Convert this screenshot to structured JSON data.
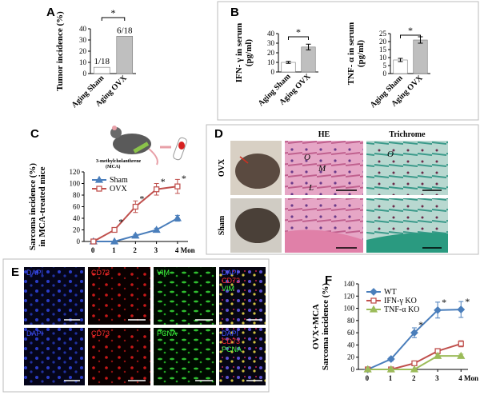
{
  "panel_labels": [
    "A",
    "B",
    "C",
    "D",
    "E",
    "F"
  ],
  "chart_data": [
    {
      "type": "bar",
      "ylabel": [
        "Tumor incidence (%)"
      ],
      "categories": [
        "Aging Sham",
        "Aging OVX"
      ],
      "values": [
        5.6,
        33.3
      ],
      "value_labels": [
        "1/18",
        "6/18"
      ],
      "colors": [
        "#ffffff",
        "#bfbfbf"
      ],
      "ylim": [
        0,
        40
      ],
      "yticks": [
        0,
        10,
        20,
        30,
        40
      ],
      "significance": "*"
    },
    {
      "type": "bar",
      "ylabel": [
        "IFN- γ in serum",
        "(pg/ml)"
      ],
      "categories": [
        "Aging Sham",
        "Aging OVX"
      ],
      "values": [
        10,
        26
      ],
      "errors": [
        1,
        3
      ],
      "colors": [
        "#ffffff",
        "#bfbfbf"
      ],
      "ylim": [
        0,
        40
      ],
      "yticks": [
        0,
        10,
        20,
        30,
        40
      ],
      "significance": "*"
    },
    {
      "type": "bar",
      "ylabel": [
        "TNF- α in serum",
        "(pg/ml)"
      ],
      "categories": [
        "Aging Sham",
        "Aging OVX"
      ],
      "values": [
        8.5,
        21
      ],
      "errors": [
        1,
        2
      ],
      "colors": [
        "#ffffff",
        "#bfbfbf"
      ],
      "ylim": [
        0,
        25
      ],
      "yticks": [
        0,
        5,
        10,
        15,
        20,
        25
      ],
      "significance": "*"
    },
    {
      "type": "line",
      "ylabel": [
        "Sarcoma incidence (%)",
        "in MCA-treated mice"
      ],
      "x": [
        0,
        1,
        2,
        3,
        4
      ],
      "xlim": [
        -0.45,
        4.5
      ],
      "xticks": [
        0,
        1,
        2,
        3,
        {
          "value": 4,
          "label": "4 Mon"
        }
      ],
      "ylim": [
        0,
        120
      ],
      "yticks": [
        0,
        20,
        40,
        60,
        80,
        100,
        120
      ],
      "series": [
        {
          "name": "Sham",
          "color": "#4a7ebb",
          "marker": "triangle",
          "values": [
            0,
            0,
            10,
            20,
            40
          ],
          "errors": [
            0,
            0,
            2,
            3,
            5
          ],
          "annotations": [
            null,
            null,
            null,
            null,
            null
          ]
        },
        {
          "name": "OVX",
          "color": "#c0504d",
          "marker": "square",
          "values": [
            0,
            20,
            60,
            90,
            95
          ],
          "errors": [
            0,
            4,
            10,
            10,
            12
          ],
          "annotations": [
            null,
            "*",
            "*",
            "*",
            "*"
          ]
        }
      ]
    },
    {
      "type": "line",
      "ylabel": [
        "OVX+MCA",
        "Sarcoma incidence (%)"
      ],
      "x": [
        0,
        1,
        2,
        3,
        4
      ],
      "xlim": [
        -0.4,
        4.3
      ],
      "xticks": [
        0,
        1,
        2,
        3,
        {
          "value": 4,
          "label": "4 Mon"
        }
      ],
      "ylim": [
        0,
        140
      ],
      "yticks": [
        0,
        20,
        40,
        60,
        80,
        100,
        120,
        140
      ],
      "series": [
        {
          "name": "WT",
          "color": "#4a7ebb",
          "marker": "diamond",
          "values": [
            0,
            17,
            60,
            97,
            98
          ],
          "errors": [
            0,
            3,
            8,
            13,
            13
          ],
          "annotations": [
            null,
            null,
            "*",
            "*",
            "*"
          ]
        },
        {
          "name": "IFN-γ KO",
          "color": "#c0504d",
          "marker": "square",
          "values": [
            0,
            0,
            10,
            30,
            42
          ],
          "errors": [
            0,
            0,
            0,
            4,
            5
          ],
          "annotations": [
            null,
            null,
            null,
            null,
            null
          ]
        },
        {
          "name": "TNF-α KO",
          "color": "#9bbb59",
          "marker": "triangle",
          "values": [
            0,
            0,
            0,
            22,
            22
          ],
          "errors": [
            0,
            0,
            0,
            3,
            3
          ],
          "annotations": [
            null,
            null,
            null,
            null,
            null
          ]
        }
      ]
    }
  ],
  "illustration": {
    "label": [
      "3-methylcholanthrene",
      "(MCA)"
    ]
  },
  "panel_d": {
    "columns": [
      "HE",
      "Trichrome"
    ],
    "rows": [
      "OVX",
      "Sham"
    ],
    "annotations": [
      "O",
      "M",
      "L",
      "O"
    ]
  },
  "panel_e": {
    "rows": [
      {
        "channels": [
          "DAPI",
          "CD73",
          "VIM"
        ],
        "merge": [
          "DAPI",
          "CD73",
          "VIM"
        ]
      },
      {
        "channels": [
          "DAPI",
          "CD73",
          "PCNA"
        ],
        "merge": [
          "DAPI",
          "CD73",
          "PCNA"
        ]
      }
    ]
  }
}
